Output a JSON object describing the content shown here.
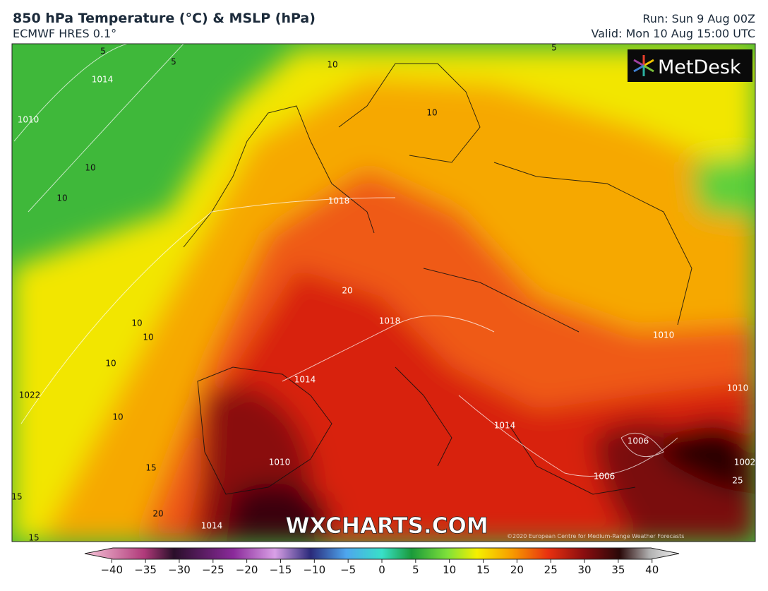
{
  "header": {
    "title": "850 hPa Temperature (°C) & MSLP (hPa)",
    "subtitle": "ECMWF HRES 0.1°",
    "run": "Run: Sun 9 Aug 00Z",
    "valid": "Valid: Mon 10 Aug 15:00 UTC"
  },
  "brand": "MetDesk",
  "watermark": "WXCHARTS.COM",
  "copyright": "©2020 European Centre for Medium-Range Weather Forecasts",
  "map_labels": [
    "5",
    "5",
    "5",
    "10",
    "10",
    "1014",
    "1010",
    "10",
    "10",
    "1018",
    "20",
    "1018",
    "10",
    "10",
    "10",
    "1014",
    "1022",
    "10",
    "1010",
    "15",
    "15",
    "20",
    "1014",
    "15",
    "1006",
    "1006",
    "1014",
    "1010",
    "1010",
    "1002",
    "25"
  ],
  "colorbar": {
    "ticks": [
      {
        "value": -40,
        "label": "−40"
      },
      {
        "value": -35,
        "label": "−35"
      },
      {
        "value": -30,
        "label": "−30"
      },
      {
        "value": -25,
        "label": "−25"
      },
      {
        "value": -20,
        "label": "−20"
      },
      {
        "value": -15,
        "label": "−15"
      },
      {
        "value": -10,
        "label": "−10"
      },
      {
        "value": -5,
        "label": "−5"
      },
      0,
      5,
      10,
      15,
      20,
      25,
      30,
      35,
      40
    ],
    "lim": [
      -44,
      44
    ]
  }
}
